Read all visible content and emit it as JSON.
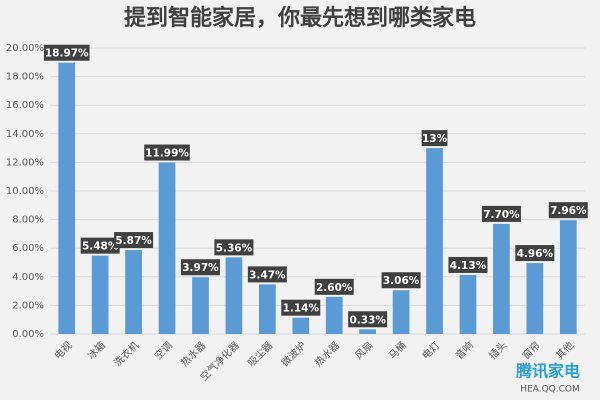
{
  "chart_data": {
    "type": "bar",
    "title": "提到智能家居，你最先想到哪类家电",
    "categories": [
      "电视",
      "冰箱",
      "洗衣机",
      "空调",
      "热水器",
      "空气净化器",
      "吸尘器",
      "微波炉",
      "热水器",
      "风扇",
      "马桶",
      "电灯",
      "音响",
      "插头",
      "窗帘",
      "其他"
    ],
    "values": [
      18.97,
      5.48,
      5.87,
      11.99,
      3.97,
      5.36,
      3.47,
      1.14,
      2.6,
      0.33,
      3.06,
      13,
      4.13,
      7.7,
      4.96,
      7.96
    ],
    "value_labels": [
      "18.97%",
      "5.48%",
      "5.87%",
      "11.99%",
      "3.97%",
      "5.36%",
      "3.47%",
      "1.14%",
      "2.60%",
      "0.33%",
      "3.06%",
      "13%",
      "4.13%",
      "7.70%",
      "4.96%",
      "7.96%"
    ],
    "color": "#5b9bd5",
    "ylim": [
      0,
      20
    ],
    "yticks": [
      {
        "value": 0,
        "label": "0.00%"
      },
      {
        "value": 2,
        "label": "2.00%"
      },
      {
        "value": 4,
        "label": "4.00%"
      },
      {
        "value": 6,
        "label": "6.00%"
      },
      {
        "value": 8,
        "label": "8.00%"
      },
      {
        "value": 10,
        "label": "10.00%"
      },
      {
        "value": 12,
        "label": "12.00%"
      },
      {
        "value": 14,
        "label": "14.00%"
      },
      {
        "value": 16,
        "label": "16.00%"
      },
      {
        "value": 18,
        "label": "18.00%"
      },
      {
        "value": 20,
        "label": "20.00%"
      }
    ],
    "grid": true
  },
  "watermark": {
    "brand": "腾讯家电",
    "url": "HEA.QQ.COM"
  }
}
